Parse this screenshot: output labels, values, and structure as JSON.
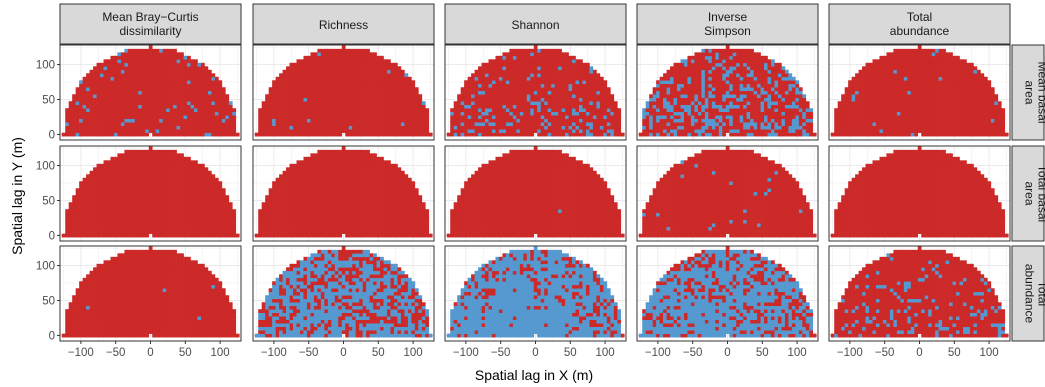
{
  "chart_data": {
    "type": "heatmap",
    "layout": "faceted grid 3 rows x 5 columns, semicircular spatial-lag heatmaps",
    "xlabel": "Spatial lag in X (m)",
    "ylabel": "Spatial lag in Y (m)",
    "xlim": [
      -130,
      130
    ],
    "ylim": [
      -8,
      128
    ],
    "xticks": [
      -100,
      -50,
      0,
      50,
      100
    ],
    "xtick_labels": [
      "−100",
      "−50",
      "0",
      "50",
      "100"
    ],
    "yticks": [
      0,
      50,
      100
    ],
    "ytick_labels": [
      "0",
      "50",
      "100"
    ],
    "column_facets": [
      [
        "Mean Bray−Curtis",
        "dissimilarity"
      ],
      [
        "Richness"
      ],
      [
        "Shannon"
      ],
      [
        "Inverse",
        "Simpson"
      ],
      [
        "Total",
        "abundance"
      ]
    ],
    "row_facets": [
      [
        "Mean basal",
        "area"
      ],
      [
        "Total basal",
        "area"
      ],
      [
        "Total",
        "abundance"
      ]
    ],
    "cell_size_m": 5,
    "max_lag_m": 125,
    "grid": true,
    "colors": {
      "dominant": "#cc2929",
      "minority": "#5599d0",
      "panel_background": "#ffffff",
      "grid": "#ebebeb",
      "strip_fill": "#d9d9d9",
      "strip_border": "#333333",
      "panel_border": "#333333"
    },
    "panels_blue_fraction": [
      [
        0.05,
        0.008,
        0.12,
        0.25,
        0.02
      ],
      [
        0.0,
        0.0,
        0.004,
        0.02,
        0.0
      ],
      [
        0.004,
        0.65,
        0.86,
        0.72,
        0.12
      ]
    ]
  }
}
